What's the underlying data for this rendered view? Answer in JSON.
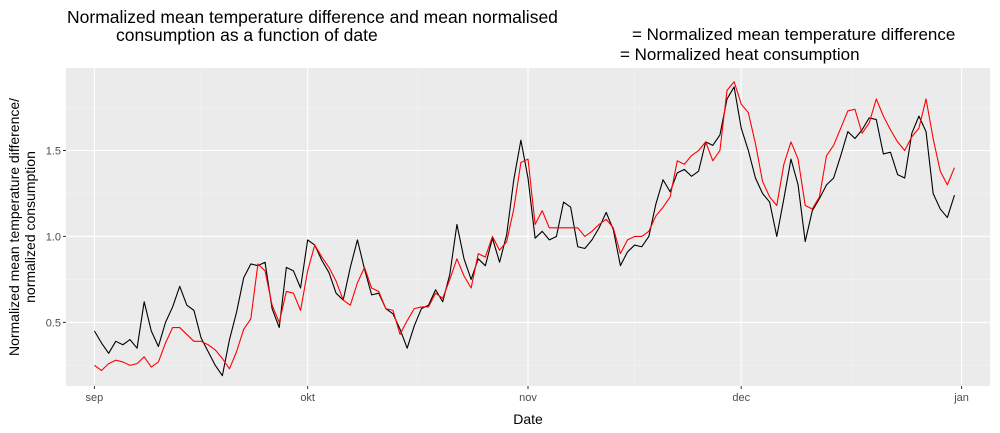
{
  "chart_data": {
    "type": "line",
    "title": "Normalized mean temperature difference and mean normalised consumption as a function of date",
    "title_lines": [
      "Normalized mean temperature difference and mean normalised",
      "consumption as a function of date"
    ],
    "xlabel": "Date",
    "ylabel": "Normalized mean temperature difference/ normalized consumption",
    "ylabel_lines": [
      "Normalized mean temperature difference/",
      "normalized consumption"
    ],
    "xlim": [
      "2021-08-28",
      "2022-01-05"
    ],
    "ylim": [
      0.13,
      1.98
    ],
    "grid": true,
    "legend_placement": "top-right",
    "x_ticks": [
      {
        "date": "2021-09-01",
        "label": "sep"
      },
      {
        "date": "2021-10-01",
        "label": "okt"
      },
      {
        "date": "2021-11-01",
        "label": "nov"
      },
      {
        "date": "2021-12-01",
        "label": "dec"
      },
      {
        "date": "2022-01-01",
        "label": "jan"
      }
    ],
    "y_ticks": [
      {
        "value": 0.5,
        "label": "0.5"
      },
      {
        "value": 1.0,
        "label": "1.0"
      },
      {
        "value": 1.5,
        "label": "1.5"
      }
    ],
    "series": [
      {
        "name": "= Normalized mean temperature difference",
        "color": "#000000",
        "points": [
          [
            "2021-09-01",
            0.45
          ],
          [
            "2021-09-02",
            0.38
          ],
          [
            "2021-09-03",
            0.32
          ],
          [
            "2021-09-04",
            0.39
          ],
          [
            "2021-09-05",
            0.37
          ],
          [
            "2021-09-06",
            0.4
          ],
          [
            "2021-09-07",
            0.35
          ],
          [
            "2021-09-08",
            0.62
          ],
          [
            "2021-09-09",
            0.45
          ],
          [
            "2021-09-10",
            0.36
          ],
          [
            "2021-09-11",
            0.5
          ],
          [
            "2021-09-12",
            0.59
          ],
          [
            "2021-09-13",
            0.71
          ],
          [
            "2021-09-14",
            0.6
          ],
          [
            "2021-09-15",
            0.57
          ],
          [
            "2021-09-16",
            0.41
          ],
          [
            "2021-09-17",
            0.33
          ],
          [
            "2021-09-18",
            0.25
          ],
          [
            "2021-09-19",
            0.19
          ],
          [
            "2021-09-20",
            0.4
          ],
          [
            "2021-09-21",
            0.56
          ],
          [
            "2021-09-22",
            0.76
          ],
          [
            "2021-09-23",
            0.84
          ],
          [
            "2021-09-24",
            0.83
          ],
          [
            "2021-09-25",
            0.85
          ],
          [
            "2021-09-26",
            0.58
          ],
          [
            "2021-09-27",
            0.47
          ],
          [
            "2021-09-28",
            0.82
          ],
          [
            "2021-09-29",
            0.8
          ],
          [
            "2021-09-30",
            0.7
          ],
          [
            "2021-10-01",
            0.98
          ],
          [
            "2021-10-02",
            0.95
          ],
          [
            "2021-10-03",
            0.86
          ],
          [
            "2021-10-04",
            0.79
          ],
          [
            "2021-10-05",
            0.67
          ],
          [
            "2021-10-06",
            0.63
          ],
          [
            "2021-10-07",
            0.82
          ],
          [
            "2021-10-08",
            0.98
          ],
          [
            "2021-10-09",
            0.81
          ],
          [
            "2021-10-10",
            0.66
          ],
          [
            "2021-10-11",
            0.67
          ],
          [
            "2021-10-12",
            0.58
          ],
          [
            "2021-10-13",
            0.55
          ],
          [
            "2021-10-14",
            0.46
          ],
          [
            "2021-10-15",
            0.35
          ],
          [
            "2021-10-16",
            0.48
          ],
          [
            "2021-10-17",
            0.58
          ],
          [
            "2021-10-18",
            0.6
          ],
          [
            "2021-10-19",
            0.69
          ],
          [
            "2021-10-20",
            0.62
          ],
          [
            "2021-10-21",
            0.78
          ],
          [
            "2021-10-22",
            1.07
          ],
          [
            "2021-10-23",
            0.87
          ],
          [
            "2021-10-24",
            0.75
          ],
          [
            "2021-10-25",
            0.87
          ],
          [
            "2021-10-26",
            0.83
          ],
          [
            "2021-10-27",
            0.99
          ],
          [
            "2021-10-28",
            0.85
          ],
          [
            "2021-10-29",
            1.01
          ],
          [
            "2021-10-30",
            1.33
          ],
          [
            "2021-10-31",
            1.56
          ],
          [
            "2021-11-01",
            1.34
          ],
          [
            "2021-11-02",
            0.99
          ],
          [
            "2021-11-03",
            1.03
          ],
          [
            "2021-11-04",
            0.98
          ],
          [
            "2021-11-05",
            1.0
          ],
          [
            "2021-11-06",
            1.2
          ],
          [
            "2021-11-07",
            1.17
          ],
          [
            "2021-11-08",
            0.94
          ],
          [
            "2021-11-09",
            0.93
          ],
          [
            "2021-11-10",
            0.98
          ],
          [
            "2021-11-11",
            1.05
          ],
          [
            "2021-11-12",
            1.14
          ],
          [
            "2021-11-13",
            1.04
          ],
          [
            "2021-11-14",
            0.83
          ],
          [
            "2021-11-15",
            0.91
          ],
          [
            "2021-11-16",
            0.95
          ],
          [
            "2021-11-17",
            0.94
          ],
          [
            "2021-11-18",
            1.0
          ],
          [
            "2021-11-19",
            1.19
          ],
          [
            "2021-11-20",
            1.33
          ],
          [
            "2021-11-21",
            1.26
          ],
          [
            "2021-11-22",
            1.37
          ],
          [
            "2021-11-23",
            1.39
          ],
          [
            "2021-11-24",
            1.35
          ],
          [
            "2021-11-25",
            1.38
          ],
          [
            "2021-11-26",
            1.55
          ],
          [
            "2021-11-27",
            1.53
          ],
          [
            "2021-11-28",
            1.59
          ],
          [
            "2021-11-29",
            1.8
          ],
          [
            "2021-11-30",
            1.87
          ],
          [
            "2021-12-01",
            1.63
          ],
          [
            "2021-12-02",
            1.5
          ],
          [
            "2021-12-03",
            1.34
          ],
          [
            "2021-12-04",
            1.25
          ],
          [
            "2021-12-05",
            1.2
          ],
          [
            "2021-12-06",
            1.0
          ],
          [
            "2021-12-07",
            1.22
          ],
          [
            "2021-12-08",
            1.45
          ],
          [
            "2021-12-09",
            1.3
          ],
          [
            "2021-12-10",
            0.97
          ],
          [
            "2021-12-11",
            1.15
          ],
          [
            "2021-12-12",
            1.22
          ],
          [
            "2021-12-13",
            1.3
          ],
          [
            "2021-12-14",
            1.34
          ],
          [
            "2021-12-15",
            1.47
          ],
          [
            "2021-12-16",
            1.61
          ],
          [
            "2021-12-17",
            1.57
          ],
          [
            "2021-12-18",
            1.62
          ],
          [
            "2021-12-19",
            1.69
          ],
          [
            "2021-12-20",
            1.68
          ],
          [
            "2021-12-21",
            1.48
          ],
          [
            "2021-12-22",
            1.49
          ],
          [
            "2021-12-23",
            1.36
          ],
          [
            "2021-12-24",
            1.34
          ],
          [
            "2021-12-25",
            1.6
          ],
          [
            "2021-12-26",
            1.7
          ],
          [
            "2021-12-27",
            1.61
          ],
          [
            "2021-12-28",
            1.25
          ],
          [
            "2021-12-29",
            1.16
          ],
          [
            "2021-12-30",
            1.11
          ],
          [
            "2021-12-31",
            1.24
          ]
        ]
      },
      {
        "name": "= Normalized heat consumption",
        "color": "#ff0000",
        "points": [
          [
            "2021-09-01",
            0.25
          ],
          [
            "2021-09-02",
            0.22
          ],
          [
            "2021-09-03",
            0.26
          ],
          [
            "2021-09-04",
            0.28
          ],
          [
            "2021-09-05",
            0.27
          ],
          [
            "2021-09-06",
            0.25
          ],
          [
            "2021-09-07",
            0.26
          ],
          [
            "2021-09-08",
            0.3
          ],
          [
            "2021-09-09",
            0.24
          ],
          [
            "2021-09-10",
            0.27
          ],
          [
            "2021-09-11",
            0.38
          ],
          [
            "2021-09-12",
            0.47
          ],
          [
            "2021-09-13",
            0.47
          ],
          [
            "2021-09-14",
            0.43
          ],
          [
            "2021-09-15",
            0.39
          ],
          [
            "2021-09-16",
            0.39
          ],
          [
            "2021-09-17",
            0.37
          ],
          [
            "2021-09-18",
            0.34
          ],
          [
            "2021-09-19",
            0.29
          ],
          [
            "2021-09-20",
            0.23
          ],
          [
            "2021-09-21",
            0.33
          ],
          [
            "2021-09-22",
            0.46
          ],
          [
            "2021-09-23",
            0.52
          ],
          [
            "2021-09-24",
            0.84
          ],
          [
            "2021-09-25",
            0.8
          ],
          [
            "2021-09-26",
            0.6
          ],
          [
            "2021-09-27",
            0.5
          ],
          [
            "2021-09-28",
            0.68
          ],
          [
            "2021-09-29",
            0.67
          ],
          [
            "2021-09-30",
            0.57
          ],
          [
            "2021-10-01",
            0.8
          ],
          [
            "2021-10-02",
            0.95
          ],
          [
            "2021-10-03",
            0.88
          ],
          [
            "2021-10-04",
            0.82
          ],
          [
            "2021-10-05",
            0.74
          ],
          [
            "2021-10-06",
            0.63
          ],
          [
            "2021-10-07",
            0.6
          ],
          [
            "2021-10-08",
            0.73
          ],
          [
            "2021-10-09",
            0.82
          ],
          [
            "2021-10-10",
            0.7
          ],
          [
            "2021-10-11",
            0.68
          ],
          [
            "2021-10-12",
            0.58
          ],
          [
            "2021-10-13",
            0.57
          ],
          [
            "2021-10-14",
            0.43
          ],
          [
            "2021-10-15",
            0.51
          ],
          [
            "2021-10-16",
            0.58
          ],
          [
            "2021-10-17",
            0.59
          ],
          [
            "2021-10-18",
            0.59
          ],
          [
            "2021-10-19",
            0.67
          ],
          [
            "2021-10-20",
            0.64
          ],
          [
            "2021-10-21",
            0.75
          ],
          [
            "2021-10-22",
            0.87
          ],
          [
            "2021-10-23",
            0.77
          ],
          [
            "2021-10-24",
            0.7
          ],
          [
            "2021-10-25",
            0.9
          ],
          [
            "2021-10-26",
            0.88
          ],
          [
            "2021-10-27",
            1.0
          ],
          [
            "2021-10-28",
            0.92
          ],
          [
            "2021-10-29",
            0.97
          ],
          [
            "2021-10-30",
            1.16
          ],
          [
            "2021-10-31",
            1.43
          ],
          [
            "2021-11-01",
            1.45
          ],
          [
            "2021-11-02",
            1.07
          ],
          [
            "2021-11-03",
            1.15
          ],
          [
            "2021-11-04",
            1.05
          ],
          [
            "2021-11-05",
            1.05
          ],
          [
            "2021-11-06",
            1.05
          ],
          [
            "2021-11-07",
            1.05
          ],
          [
            "2021-11-08",
            1.05
          ],
          [
            "2021-11-09",
            1.0
          ],
          [
            "2021-11-10",
            1.03
          ],
          [
            "2021-11-11",
            1.07
          ],
          [
            "2021-11-12",
            1.1
          ],
          [
            "2021-11-13",
            1.05
          ],
          [
            "2021-11-14",
            0.9
          ],
          [
            "2021-11-15",
            0.98
          ],
          [
            "2021-11-16",
            1.0
          ],
          [
            "2021-11-17",
            1.0
          ],
          [
            "2021-11-18",
            1.03
          ],
          [
            "2021-11-19",
            1.12
          ],
          [
            "2021-11-20",
            1.17
          ],
          [
            "2021-11-21",
            1.23
          ],
          [
            "2021-11-22",
            1.44
          ],
          [
            "2021-11-23",
            1.42
          ],
          [
            "2021-11-24",
            1.47
          ],
          [
            "2021-11-25",
            1.5
          ],
          [
            "2021-11-26",
            1.55
          ],
          [
            "2021-11-27",
            1.44
          ],
          [
            "2021-11-28",
            1.5
          ],
          [
            "2021-11-29",
            1.85
          ],
          [
            "2021-11-30",
            1.9
          ],
          [
            "2021-12-01",
            1.77
          ],
          [
            "2021-12-02",
            1.72
          ],
          [
            "2021-12-03",
            1.54
          ],
          [
            "2021-12-04",
            1.32
          ],
          [
            "2021-12-05",
            1.23
          ],
          [
            "2021-12-06",
            1.18
          ],
          [
            "2021-12-07",
            1.42
          ],
          [
            "2021-12-08",
            1.55
          ],
          [
            "2021-12-09",
            1.45
          ],
          [
            "2021-12-10",
            1.18
          ],
          [
            "2021-12-11",
            1.16
          ],
          [
            "2021-12-12",
            1.23
          ],
          [
            "2021-12-13",
            1.47
          ],
          [
            "2021-12-14",
            1.53
          ],
          [
            "2021-12-15",
            1.63
          ],
          [
            "2021-12-16",
            1.73
          ],
          [
            "2021-12-17",
            1.74
          ],
          [
            "2021-12-18",
            1.6
          ],
          [
            "2021-12-19",
            1.66
          ],
          [
            "2021-12-20",
            1.8
          ],
          [
            "2021-12-21",
            1.7
          ],
          [
            "2021-12-22",
            1.62
          ],
          [
            "2021-12-23",
            1.55
          ],
          [
            "2021-12-24",
            1.5
          ],
          [
            "2021-12-25",
            1.58
          ],
          [
            "2021-12-26",
            1.63
          ],
          [
            "2021-12-27",
            1.8
          ],
          [
            "2021-12-28",
            1.57
          ],
          [
            "2021-12-29",
            1.38
          ],
          [
            "2021-12-30",
            1.3
          ],
          [
            "2021-12-31",
            1.4
          ]
        ]
      }
    ],
    "colors": {
      "panel_bg": "#ebebeb",
      "grid_major": "#ffffff",
      "grid_minor": "#f5f5f5",
      "tick_text": "#4d4d4d"
    }
  }
}
